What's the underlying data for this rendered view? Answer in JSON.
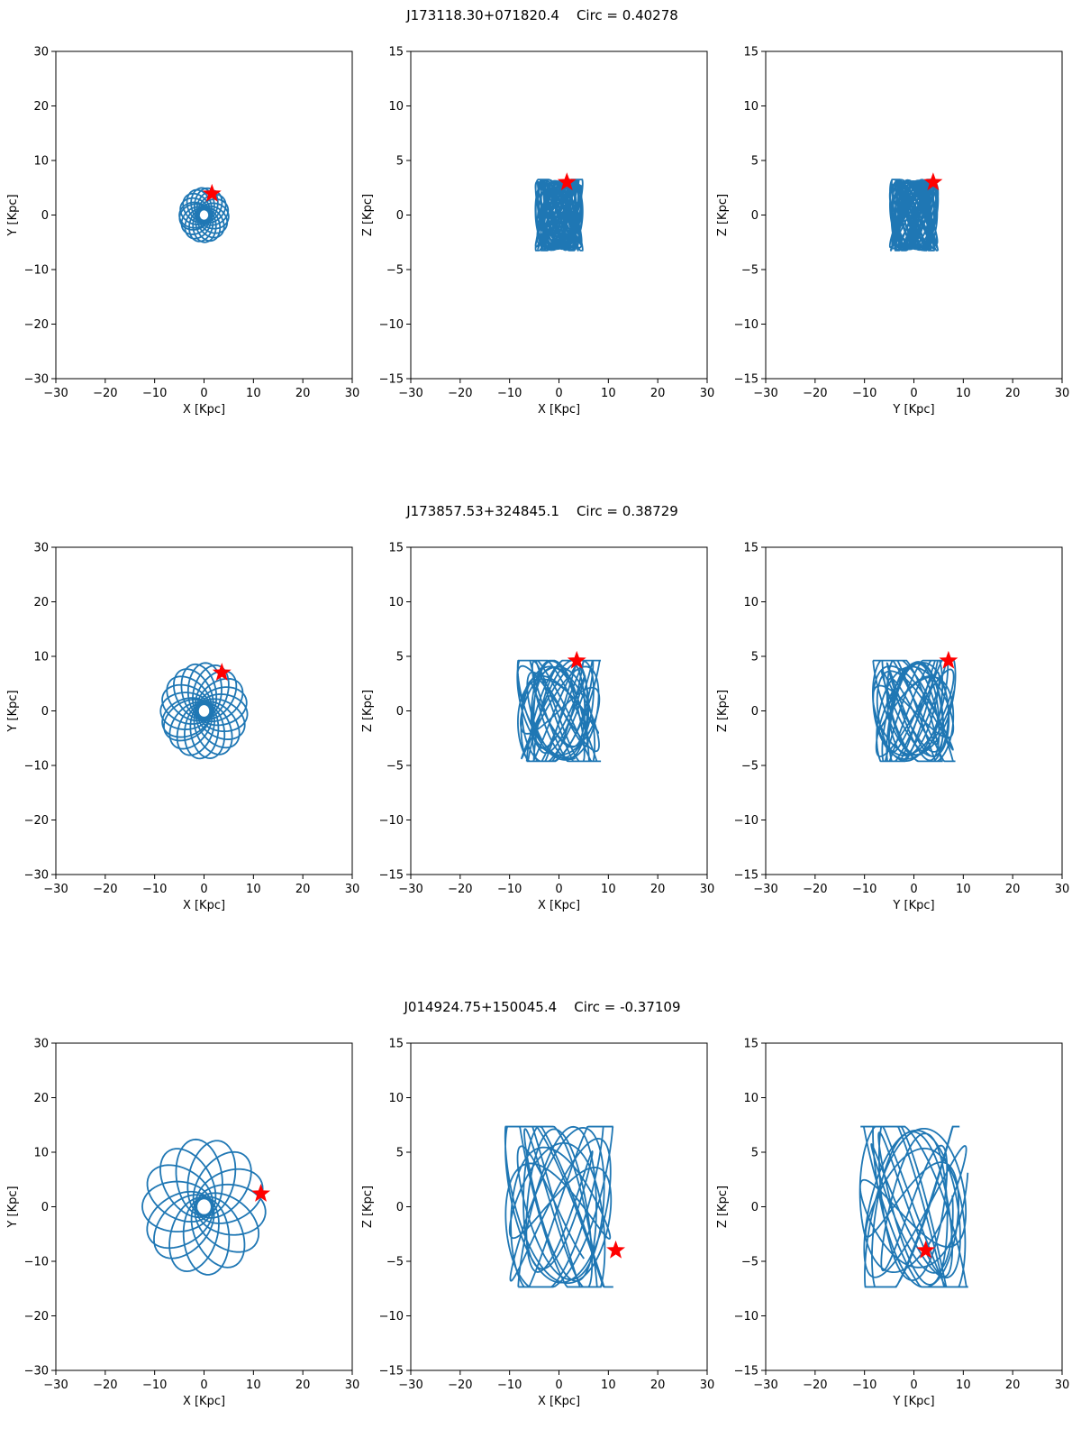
{
  "chart_data": [
    {
      "title": "J173118.30+071820.4    Circ = 0.40278",
      "object": "J173118.30+071820.4",
      "circ": 0.40278,
      "panels": [
        {
          "type": "line",
          "projection": "XY",
          "xlabel": "X [Kpc]",
          "ylabel": "Y [Kpc]",
          "xlim": [
            -30,
            30
          ],
          "ylim": [
            -30,
            30
          ],
          "xticks": [
            -30,
            -20,
            -10,
            0,
            10,
            20,
            30
          ],
          "yticks": [
            -30,
            -20,
            -10,
            0,
            10,
            20,
            30
          ],
          "xticklabels": [
            "−30",
            "−20",
            "−10",
            "0",
            "10",
            "20",
            "30"
          ],
          "yticklabels": [
            "−30",
            "−20",
            "−10",
            "0",
            "10",
            "20",
            "30"
          ],
          "star": [
            1.6,
            3.9
          ],
          "orbit": {
            "kind": "rosette",
            "r_in": 1.0,
            "r_out": 5.0,
            "petals": 18,
            "rot": 0.0
          }
        },
        {
          "type": "line",
          "projection": "XZ",
          "xlabel": "X [Kpc]",
          "ylabel": "Z [Kpc]",
          "xlim": [
            -30,
            30
          ],
          "ylim": [
            -15,
            15
          ],
          "xticks": [
            -30,
            -20,
            -10,
            0,
            10,
            20,
            30
          ],
          "yticks": [
            -15,
            -10,
            -5,
            0,
            5,
            10,
            15
          ],
          "xticklabels": [
            "−30",
            "−20",
            "−10",
            "0",
            "10",
            "20",
            "30"
          ],
          "yticklabels": [
            "−15",
            "−10",
            "−5",
            "0",
            "5",
            "10",
            "15"
          ],
          "star": [
            1.6,
            3.0
          ],
          "orbit": {
            "kind": "box",
            "ax": 4.8,
            "az": 3.1,
            "tilt": 0.1,
            "loops": 34,
            "rot": 0.2
          }
        },
        {
          "type": "line",
          "projection": "YZ",
          "xlabel": "Y [Kpc]",
          "ylabel": "Z [Kpc]",
          "xlim": [
            -30,
            30
          ],
          "ylim": [
            -15,
            15
          ],
          "xticks": [
            -30,
            -20,
            -10,
            0,
            10,
            20,
            30
          ],
          "yticks": [
            -15,
            -10,
            -5,
            0,
            5,
            10,
            15
          ],
          "xticklabels": [
            "−30",
            "−20",
            "−10",
            "0",
            "10",
            "20",
            "30"
          ],
          "yticklabels": [
            "−15",
            "−10",
            "−5",
            "0",
            "5",
            "10",
            "15"
          ],
          "star": [
            3.9,
            3.0
          ],
          "orbit": {
            "kind": "box",
            "ax": 4.9,
            "az": 3.1,
            "tilt": 0.1,
            "loops": 34,
            "rot": 1.1
          }
        }
      ]
    },
    {
      "title": "J173857.53+324845.1    Circ = 0.38729",
      "object": "J173857.53+324845.1",
      "circ": 0.38729,
      "panels": [
        {
          "type": "line",
          "projection": "XY",
          "xlabel": "X [Kpc]",
          "ylabel": "Y [Kpc]",
          "xlim": [
            -30,
            30
          ],
          "ylim": [
            -30,
            30
          ],
          "xticks": [
            -30,
            -20,
            -10,
            0,
            10,
            20,
            30
          ],
          "yticks": [
            -30,
            -20,
            -10,
            0,
            10,
            20,
            30
          ],
          "xticklabels": [
            "−30",
            "−20",
            "−10",
            "0",
            "10",
            "20",
            "30"
          ],
          "yticklabels": [
            "−30",
            "−20",
            "−10",
            "0",
            "10",
            "20",
            "30"
          ],
          "star": [
            3.6,
            7.0
          ],
          "orbit": {
            "kind": "rosette",
            "r_in": 1.2,
            "r_out": 8.8,
            "petals": 20,
            "rot": 0.3
          }
        },
        {
          "type": "line",
          "projection": "XZ",
          "xlabel": "X [Kpc]",
          "ylabel": "Z [Kpc]",
          "xlim": [
            -30,
            30
          ],
          "ylim": [
            -15,
            15
          ],
          "xticks": [
            -30,
            -20,
            -10,
            0,
            10,
            20,
            30
          ],
          "yticks": [
            -15,
            -10,
            -5,
            0,
            5,
            10,
            15
          ],
          "xticklabels": [
            "−30",
            "−20",
            "−10",
            "0",
            "10",
            "20",
            "30"
          ],
          "yticklabels": [
            "−15",
            "−10",
            "−5",
            "0",
            "5",
            "10",
            "15"
          ],
          "star": [
            3.6,
            4.6
          ],
          "orbit": {
            "kind": "box",
            "ax": 8.5,
            "az": 4.4,
            "tilt": 0.35,
            "loops": 18,
            "rot": 0.4
          }
        },
        {
          "type": "line",
          "projection": "YZ",
          "xlabel": "Y [Kpc]",
          "ylabel": "Z [Kpc]",
          "xlim": [
            -30,
            30
          ],
          "ylim": [
            -15,
            15
          ],
          "xticks": [
            -30,
            -20,
            -10,
            0,
            10,
            20,
            30
          ],
          "yticks": [
            -15,
            -10,
            -5,
            0,
            5,
            10,
            15
          ],
          "xticklabels": [
            "−30",
            "−20",
            "−10",
            "0",
            "10",
            "20",
            "30"
          ],
          "yticklabels": [
            "−15",
            "−10",
            "−5",
            "0",
            "5",
            "10",
            "15"
          ],
          "star": [
            7.0,
            4.6
          ],
          "orbit": {
            "kind": "box",
            "ax": 8.4,
            "az": 4.4,
            "tilt": 0.3,
            "loops": 18,
            "rot": 1.3
          }
        }
      ]
    },
    {
      "title": "J014924.75+150045.4    Circ = -0.37109",
      "object": "J014924.75+150045.4",
      "circ": -0.37109,
      "panels": [
        {
          "type": "line",
          "projection": "XY",
          "xlabel": "X [Kpc]",
          "ylabel": "Y [Kpc]",
          "xlim": [
            -30,
            30
          ],
          "ylim": [
            -30,
            30
          ],
          "xticks": [
            -30,
            -20,
            -10,
            0,
            10,
            20,
            30
          ],
          "yticks": [
            -30,
            -20,
            -10,
            0,
            10,
            20,
            30
          ],
          "xticklabels": [
            "−30",
            "−20",
            "−10",
            "0",
            "10",
            "20",
            "30"
          ],
          "yticklabels": [
            "−30",
            "−20",
            "−10",
            "0",
            "10",
            "20",
            "30"
          ],
          "star": [
            11.5,
            2.4
          ],
          "orbit": {
            "kind": "rosette",
            "r_in": 1.5,
            "r_out": 12.5,
            "petals": 14,
            "rot": 0.5
          }
        },
        {
          "type": "line",
          "projection": "XZ",
          "xlabel": "X [Kpc]",
          "ylabel": "Z [Kpc]",
          "xlim": [
            -30,
            30
          ],
          "ylim": [
            -15,
            15
          ],
          "xticks": [
            -30,
            -20,
            -10,
            0,
            10,
            20,
            30
          ],
          "yticks": [
            -15,
            -10,
            -5,
            0,
            5,
            10,
            15
          ],
          "xticklabels": [
            "−30",
            "−20",
            "−10",
            "0",
            "10",
            "20",
            "30"
          ],
          "yticklabels": [
            "−15",
            "−10",
            "−5",
            "0",
            "5",
            "10",
            "15"
          ],
          "star": [
            11.5,
            -4.0
          ],
          "orbit": {
            "kind": "box",
            "ax": 11.0,
            "az": 7.0,
            "tilt": 0.45,
            "loops": 12,
            "rot": 0.7
          }
        },
        {
          "type": "line",
          "projection": "YZ",
          "xlabel": "Y [Kpc]",
          "ylabel": "Z [Kpc]",
          "xlim": [
            -30,
            30
          ],
          "ylim": [
            -15,
            15
          ],
          "xticks": [
            -30,
            -20,
            -10,
            0,
            10,
            20,
            30
          ],
          "yticks": [
            -15,
            -10,
            -5,
            0,
            5,
            10,
            15
          ],
          "xticklabels": [
            "−30",
            "−20",
            "−10",
            "0",
            "10",
            "20",
            "30"
          ],
          "yticklabels": [
            "−15",
            "−10",
            "−5",
            "0",
            "5",
            "10",
            "15"
          ],
          "star": [
            2.4,
            -4.0
          ],
          "orbit": {
            "kind": "box",
            "ax": 11.0,
            "az": 7.0,
            "tilt": 0.45,
            "loops": 12,
            "rot": 1.7
          }
        }
      ]
    }
  ],
  "colors": {
    "orbit": "#1f77b4",
    "star": "#ff0000",
    "axes": "#000000",
    "background": "#ffffff"
  }
}
